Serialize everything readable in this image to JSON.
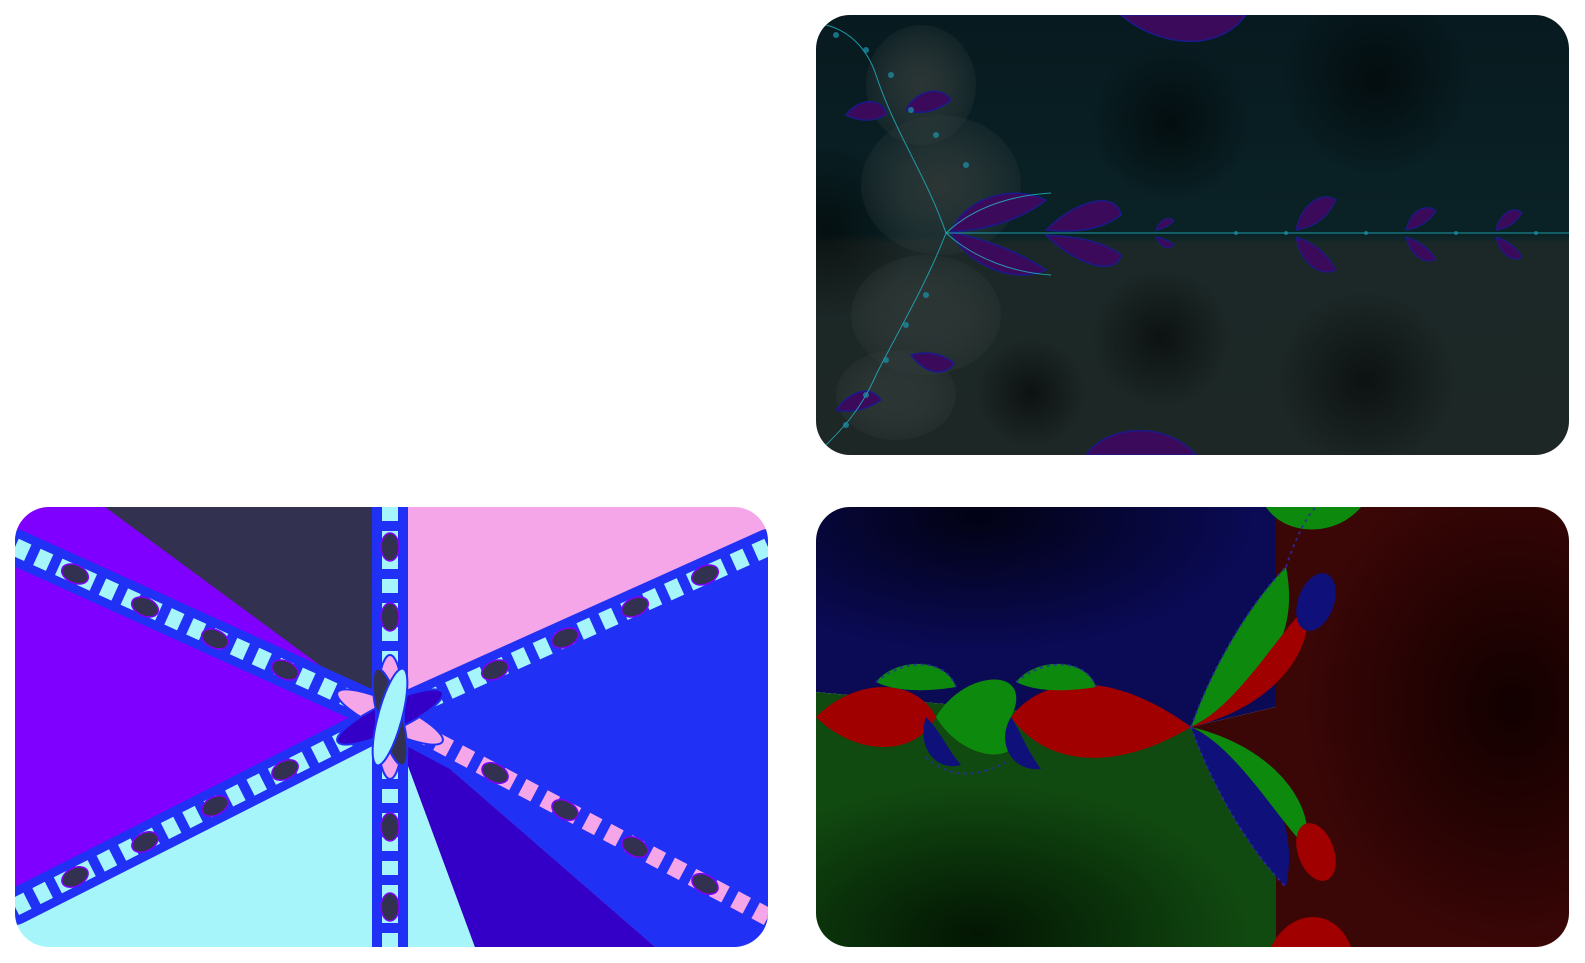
{
  "gallery": {
    "tiles": [
      {
        "id": "tile-top-right",
        "subject": "newton-fractal-dark-teal",
        "palette": {
          "background_top": "#071a1f",
          "background_bottom": "#1d2726",
          "accent_purple": "#3b0a5a",
          "accent_blue": "#1a1a8a",
          "accent_teal": "#2a4a48",
          "filament": "#22b8c8"
        }
      },
      {
        "id": "tile-bottom-left",
        "subject": "newton-fractal-pastel",
        "palette": {
          "violet": "#8000ff",
          "dark_slate": "#333150",
          "pink": "#f5a6e8",
          "royal_blue": "#2130f5",
          "cyan": "#a5f5fa",
          "indigo": "#3400c8"
        }
      },
      {
        "id": "tile-bottom-right",
        "subject": "newton-fractal-rgb",
        "palette": {
          "navy": "#060638",
          "dark_red": "#2a0404",
          "dark_green": "#0e330e",
          "red": "#a00000",
          "green": "#0d8a0d",
          "blue": "#10107a"
        }
      }
    ]
  }
}
